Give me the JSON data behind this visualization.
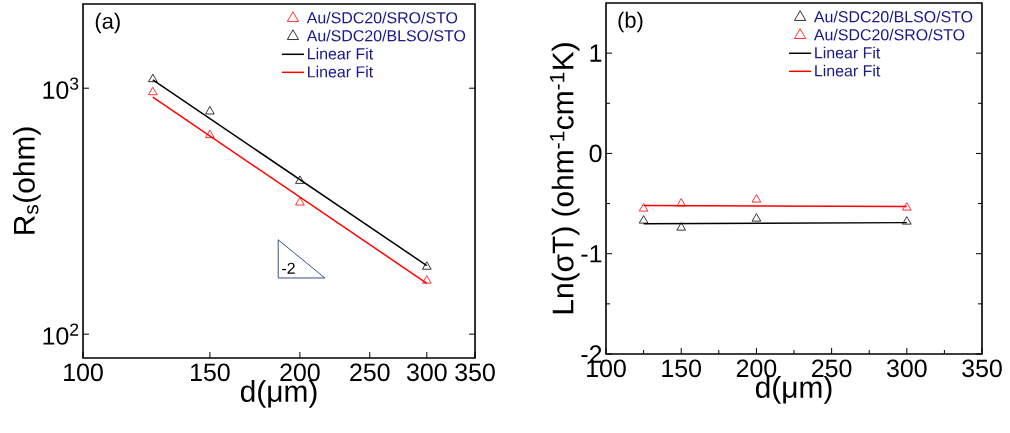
{
  "chart_data": [
    {
      "type": "scatter",
      "log": "xy",
      "legend": "top right",
      "xlabel": "d(μm)",
      "ylabel": "R$_{s}$(ohm)",
      "xlim": [
        100,
        350
      ],
      "ylim": [
        80,
        2200
      ],
      "xticks": [
        100,
        150,
        200,
        250,
        300,
        350
      ],
      "yticks": [
        {
          "value": 100,
          "label": "10$^{2}$"
        },
        {
          "value": 1000,
          "label": "10$^{3}$"
        }
      ],
      "annotations": [
        "(a)",
        "-2"
      ],
      "x": [
        125,
        150,
        200,
        300
      ],
      "series": [
        {
          "name": "Au/SDC20/SRO/STO",
          "color": "#ff0000",
          "marker": "triangle",
          "values": [
            963,
            645,
            343,
            165
          ]
        },
        {
          "name": "Au/SDC20/BLSO/STO",
          "color": "#000000",
          "marker": "triangle",
          "values": [
            1088,
            804,
            420,
            188
          ]
        },
        {
          "name": "Linear Fit",
          "type": "line",
          "color": "#000000",
          "marker": "none",
          "values": [
            1080,
            null,
            null,
            190
          ]
        },
        {
          "name": "Linear Fit",
          "type": "line",
          "color": "#ff0000",
          "marker": "none",
          "values": [
            919,
            null,
            null,
            161
          ]
        }
      ]
    },
    {
      "type": "scatter",
      "legend": "top right",
      "xlabel": "d(μm)",
      "ylabel": "Ln(σT) (ohm$^{-1}$cm$^{-1}$K)",
      "xlim": [
        100,
        350
      ],
      "ylim": [
        -2,
        1.5
      ],
      "xticks": [
        100,
        150,
        200,
        250,
        300,
        350
      ],
      "yticks": [
        -2,
        -1,
        0,
        1
      ],
      "annotations": [
        "(b)"
      ],
      "x": [
        125,
        150,
        200,
        300
      ],
      "series": [
        {
          "name": "Au/SDC20/BLSO/STO",
          "color": "#000000",
          "marker": "triangle",
          "values": [
            -0.67,
            -0.74,
            -0.65,
            -0.68
          ]
        },
        {
          "name": "Au/SDC20/SRO/STO",
          "color": "#ff0000",
          "marker": "triangle",
          "values": [
            -0.55,
            -0.5,
            -0.46,
            -0.54
          ]
        },
        {
          "name": "Linear Fit",
          "type": "line",
          "color": "#000000",
          "marker": "none",
          "values": [
            -0.7,
            null,
            null,
            -0.69
          ]
        },
        {
          "name": "Linear Fit",
          "type": "line",
          "color": "#ff0000",
          "marker": "none",
          "values": [
            -0.52,
            null,
            null,
            -0.53
          ]
        }
      ]
    }
  ]
}
